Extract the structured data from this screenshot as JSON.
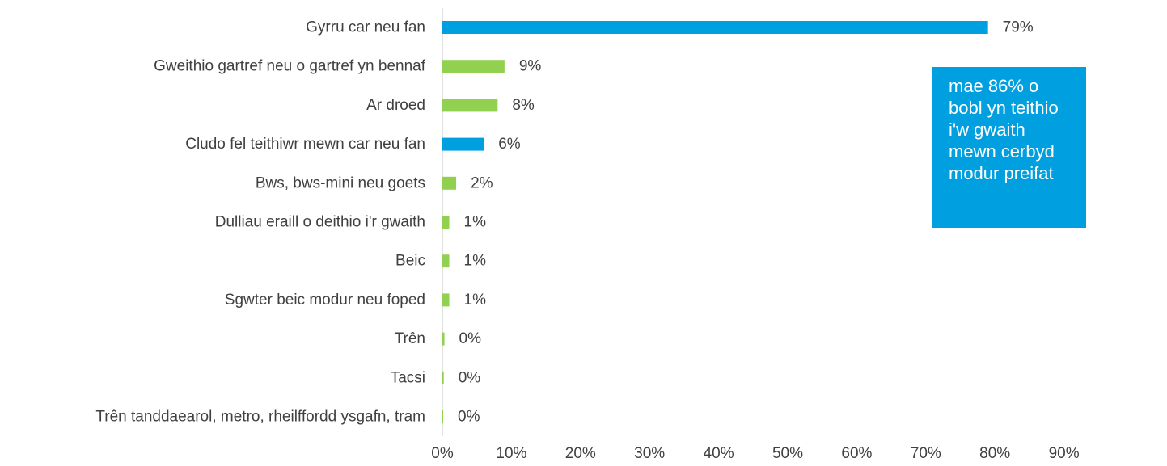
{
  "colors": {
    "car_blue": "#009fdf",
    "other_green": "#92d050",
    "axis_line": "#d9d9d9",
    "text": "#404040",
    "callout_bg": "#009fdf",
    "callout_text": "#ffffff"
  },
  "callout": {
    "text": "mae 86% o bobl yn teithio i'w gwaith mewn cerbyd modur preifat"
  },
  "chart_data": {
    "type": "bar",
    "orientation": "horizontal",
    "categories": [
      "Gyrru car neu fan",
      "Gweithio gartref neu o gartref yn bennaf",
      "Ar droed",
      "Cludo fel teithiwr mewn car neu fan",
      "Bws, bws-mini neu goets",
      "Dulliau eraill o deithio i'r gwaith",
      "Beic",
      "Sgwter beic modur neu foped",
      "Trên",
      "Tacsi",
      "Trên tanddaearol, metro, rheilffordd ysgafn, tram"
    ],
    "values": [
      79,
      9,
      8,
      6,
      2,
      1,
      1,
      1,
      0.3,
      0.2,
      0.1
    ],
    "data_labels": [
      "79%",
      "9%",
      "8%",
      "6%",
      "2%",
      "1%",
      "1%",
      "1%",
      "0%",
      "0%",
      "0%"
    ],
    "bar_colors": [
      "#009fdf",
      "#92d050",
      "#92d050",
      "#009fdf",
      "#92d050",
      "#92d050",
      "#92d050",
      "#92d050",
      "#92d050",
      "#92d050",
      "#92d050"
    ],
    "xlim": [
      0,
      90
    ],
    "x_ticks": [
      0,
      10,
      20,
      30,
      40,
      50,
      60,
      70,
      80,
      90
    ],
    "x_tick_labels": [
      "0%",
      "10%",
      "20%",
      "30%",
      "40%",
      "50%",
      "60%",
      "70%",
      "80%",
      "90%"
    ],
    "title": "",
    "xlabel": "",
    "ylabel": "",
    "grid": false,
    "legend": "none"
  }
}
